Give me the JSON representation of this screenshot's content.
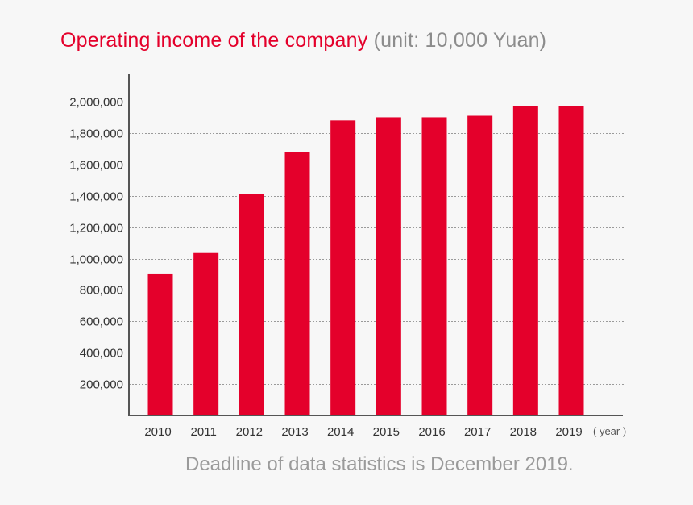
{
  "chart_data": {
    "type": "bar",
    "title": "Operating income of the company",
    "subtitle": "(unit: 10,000 Yuan)",
    "categories": [
      "2010",
      "2011",
      "2012",
      "2013",
      "2014",
      "2015",
      "2016",
      "2017",
      "2018",
      "2019"
    ],
    "values": [
      900000,
      1040000,
      1410000,
      1680000,
      1880000,
      1900000,
      1900000,
      1910000,
      1970000,
      1970000
    ],
    "y_ticks": [
      "200,000",
      "400,000",
      "600,000",
      "800,000",
      "1,000,000",
      "1,200,000",
      "1,400,000",
      "1,600,000",
      "1,800,000",
      "2,000,000"
    ],
    "y_tick_values": [
      200000,
      400000,
      600000,
      800000,
      1000000,
      1200000,
      1400000,
      1600000,
      1800000,
      2000000
    ],
    "ylim": [
      0,
      2000000
    ],
    "xlabel": "( year )",
    "ylabel": "",
    "grid": true,
    "legend": "none",
    "bar_color": "#e4002b",
    "grid_color": "#9a9a9a",
    "axis_color": "#555555"
  },
  "footnote": "Deadline of data statistics is December 2019."
}
